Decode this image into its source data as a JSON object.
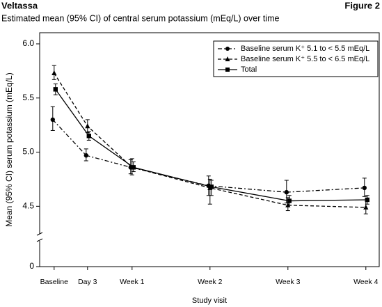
{
  "header": {
    "brand": "Veltassa",
    "figure": "Figure 2"
  },
  "chart_data": {
    "type": "line",
    "title": "Estimated mean (95% CI) of central serum potassium (mEq/L) over time",
    "x_label": "Study visit",
    "y_label": "Mean (95% CI) serum potassium (mEq/L)",
    "x": [
      0,
      3,
      7,
      14,
      21,
      28
    ],
    "xticks": [
      {
        "value": 0,
        "label": "Baseline"
      },
      {
        "value": 3,
        "label": "Day 3"
      },
      {
        "value": 7,
        "label": "Week 1"
      },
      {
        "value": 14,
        "label": "Week 2"
      },
      {
        "value": 21,
        "label": "Week 3"
      },
      {
        "value": 28,
        "label": "Week 4"
      }
    ],
    "xlim": [
      -1.3,
      29.2
    ],
    "ylim": [
      0,
      6.0
    ],
    "y_break": 4.2,
    "yticks": [
      0,
      4.5,
      {
        "value": 5,
        "label": "5.0"
      },
      5.5,
      {
        "value": 6,
        "label": "6.0"
      }
    ],
    "legend": "top-right",
    "series": [
      {
        "name": "Baseline serum K⁺ 5.1 to < 5.5 mEq/L",
        "color": "#000000",
        "marker": "circle",
        "dash": "6,3,2,3",
        "values": [
          5.3,
          4.97,
          4.86,
          4.69,
          4.63,
          4.67
        ],
        "lower": [
          5.2,
          4.92,
          4.8,
          4.6,
          4.53,
          4.59
        ],
        "upper": [
          5.42,
          5.03,
          4.93,
          4.78,
          4.74,
          4.76
        ]
      },
      {
        "name": "Baseline serum K⁺ 5.5 to < 6.5 mEq/L",
        "color": "#000000",
        "marker": "triangle",
        "dash": "5,3",
        "values": [
          5.73,
          5.24,
          4.86,
          4.67,
          4.51,
          4.49
        ],
        "lower": [
          5.67,
          5.18,
          4.79,
          4.52,
          4.46,
          4.43
        ],
        "upper": [
          5.8,
          5.3,
          4.94,
          4.75,
          4.58,
          4.56
        ]
      },
      {
        "name": "Total",
        "color": "#000000",
        "marker": "square",
        "dash": "none",
        "values": [
          5.58,
          5.15,
          4.86,
          4.68,
          4.55,
          4.56
        ],
        "lower": [
          5.53,
          5.11,
          4.82,
          4.6,
          4.51,
          4.52
        ],
        "upper": [
          5.63,
          5.19,
          4.91,
          4.74,
          4.6,
          4.6
        ]
      }
    ]
  }
}
